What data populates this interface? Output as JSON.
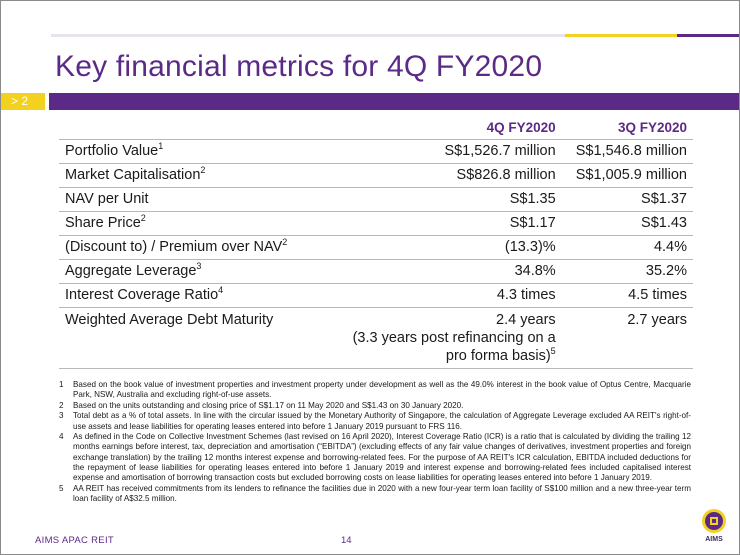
{
  "header": {
    "title": "Key financial metrics for 4Q FY2020",
    "section_marker": "> 2"
  },
  "table": {
    "columns": [
      "4Q FY2020",
      "3Q FY2020"
    ],
    "rows": [
      {
        "label": "Portfolio Value",
        "sup": "1",
        "q4": "S$1,526.7 million",
        "q3": "S$1,546.8 million"
      },
      {
        "label": "Market Capitalisation",
        "sup": "2",
        "q4": "S$826.8 million",
        "q3": "S$1,005.9 million"
      },
      {
        "label": "NAV per Unit",
        "sup": "",
        "q4": "S$1.35",
        "q3": "S$1.37"
      },
      {
        "label": "Share Price",
        "sup": "2",
        "q4": "S$1.17",
        "q3": "S$1.43"
      },
      {
        "label": "(Discount to) / Premium over NAV",
        "sup": "2",
        "q4": "(13.3)%",
        "q3": "4.4%"
      },
      {
        "label": "Aggregate Leverage",
        "sup": "3",
        "q4": "34.8%",
        "q3": "35.2%"
      },
      {
        "label": "Interest Coverage Ratio",
        "sup": "4",
        "q4": "4.3 times",
        "q3": "4.5 times"
      },
      {
        "label": "Weighted Average Debt Maturity",
        "sup": "",
        "q4": "2.4 years",
        "q4_line2": "(3.3 years post refinancing on a",
        "q4_line3": "pro forma basis)",
        "q4_sup": "5",
        "q3": "2.7 years"
      }
    ]
  },
  "footnotes": [
    {
      "num": "1",
      "text": "Based on the book value of investment properties and investment property under development as well as the 49.0% interest in the book value of Optus Centre, Macquarie Park, NSW, Australia and excluding right-of-use assets."
    },
    {
      "num": "2",
      "text": "Based on the units outstanding and closing price of  S$1.17 on 11 May 2020 and S$1.43 on 30 January 2020."
    },
    {
      "num": "3",
      "text": "Total debt as a % of total assets. In line with the circular issued by the Monetary Authority of Singapore, the calculation of Aggregate Leverage excluded AA REIT's right-of-use assets and lease liabilities for operating leases entered into before 1 January 2019 pursuant to FRS 116."
    },
    {
      "num": "4",
      "text": "As defined in the Code on Collective Investment Schemes (last revised on 16 April 2020), Interest Coverage Ratio (ICR) is a ratio that is calculated by dividing the trailing 12 months earnings before interest, tax, depreciation and amortisation (“EBITDA”) (excluding effects of any fair value changes of derivatives, investment properties and foreign exchange translation) by the trailing 12 months interest expense and borrowing-related fees. For the purpose of AA REIT's ICR calculation, EBITDA included deductions for the repayment of lease liabilities for operating leases entered into before 1 January 2019 and interest expense and borrowing-related fees included capitalised interest expense and amortisation of borrowing transaction costs but excluded borrowing costs on lease liabilities for operating leases entered into before 1 January 2019."
    },
    {
      "num": "5",
      "text": "AA REIT has received commitments from its lenders to refinance the facilities due in 2020 with a new four-year term loan facility of S$100 million and a new three-year term loan facility of A$32.5 million."
    }
  ],
  "footer": {
    "brand": "AIMS APAC REIT",
    "page": "14",
    "logo_text": "AIMS"
  },
  "colors": {
    "brand_purple": "#5b2a86",
    "accent_yellow": "#f2d21e"
  }
}
